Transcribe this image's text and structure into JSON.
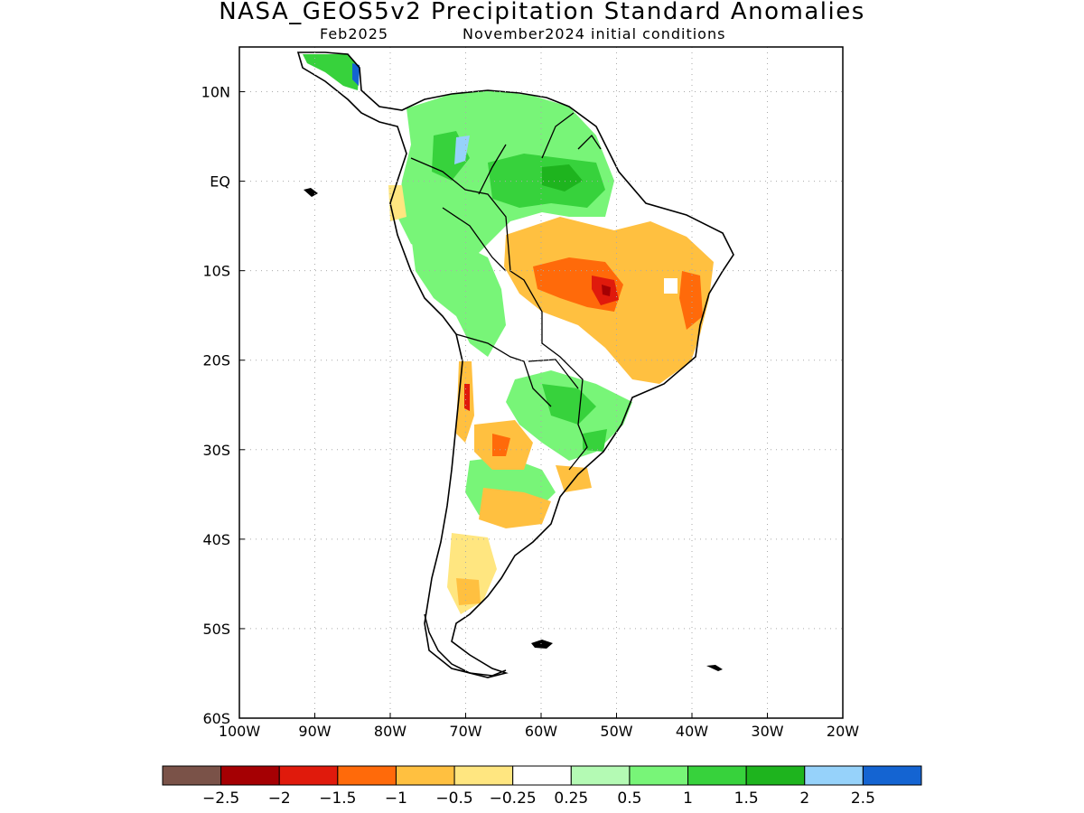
{
  "header": {
    "title": "NASA_GEOS5v2 Precipitation Standard Anomalies",
    "valid_month": "Feb2025",
    "init": "November2024 initial conditions"
  },
  "map": {
    "lon_labels": [
      "100W",
      "90W",
      "80W",
      "70W",
      "60W",
      "50W",
      "40W",
      "30W",
      "20W"
    ],
    "lat_labels": [
      "10N",
      "EQ",
      "10S",
      "20S",
      "30S",
      "40S",
      "50S",
      "60S"
    ],
    "lon_range": [
      -100,
      -20
    ],
    "lat_range": [
      -60,
      15
    ],
    "grid": "dotted",
    "coastline_color": "#000000"
  },
  "colorbar": {
    "colors": [
      "#7a5248",
      "#a50003",
      "#e01a0c",
      "#ff6a0a",
      "#ffc040",
      "#ffe680",
      "#ffffff",
      "#b4fab4",
      "#78f578",
      "#37d23c",
      "#1eb41e",
      "#96d2fa",
      "#1464d2"
    ],
    "labels": [
      "-2.5",
      "-2",
      "-1.5",
      "-1",
      "-0.5",
      "-0.25",
      "0.25",
      "0.5",
      "1",
      "1.5",
      "2",
      "2.5"
    ]
  }
}
